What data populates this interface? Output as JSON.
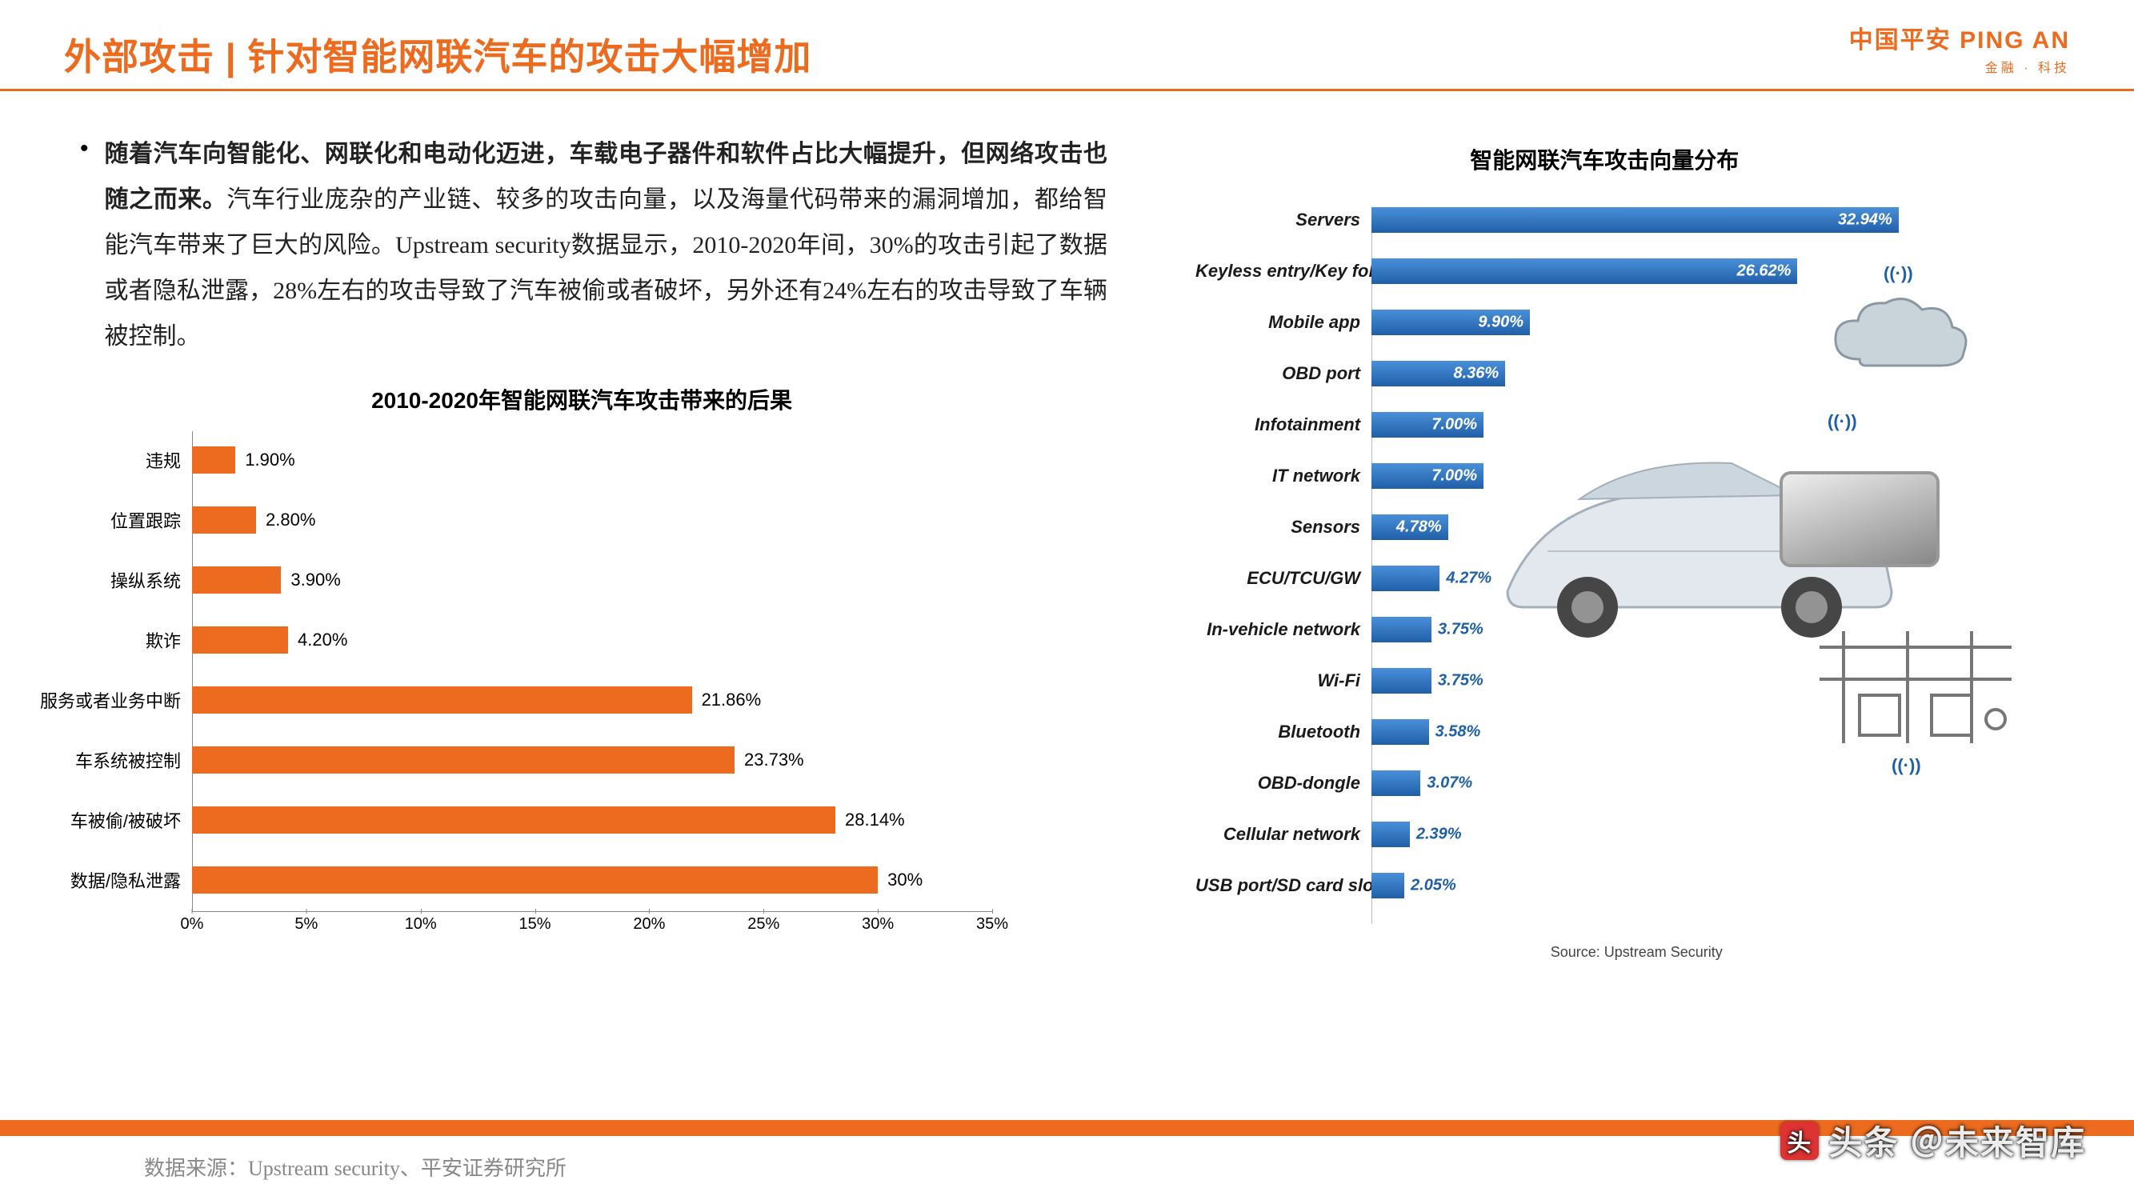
{
  "header": {
    "title": "外部攻击 | 针对智能网联汽车的攻击大幅增加",
    "logo_main": "中国平安 PING AN",
    "logo_sub": "金融 · 科技"
  },
  "paragraph": {
    "bold": "随着汽车向智能化、网联化和电动化迈进，车载电子器件和软件占比大幅提升，但网络攻击也随之而来。",
    "rest": "汽车行业庞杂的产业链、较多的攻击向量，以及海量代码带来的漏洞增加，都给智能汽车带来了巨大的风险。Upstream security数据显示，2010-2020年间，30%的攻击引起了数据或者隐私泄露，28%左右的攻击导致了汽车被偷或者破坏，另外还有24%左右的攻击导致了车辆被控制。"
  },
  "left_chart": {
    "type": "bar-horizontal",
    "title": "2010-2020年智能网联汽车攻击带来的后果",
    "bar_color": "#ec6b1f",
    "axis_color": "#888888",
    "axis_fontsize": 20,
    "label_fontsize": 22,
    "value_fontsize": 22,
    "xmax": 35,
    "xticks": [
      "0%",
      "5%",
      "10%",
      "15%",
      "20%",
      "25%",
      "30%",
      "35%"
    ],
    "rows": [
      {
        "label": "违规",
        "value": 1.9,
        "display": "1.90%"
      },
      {
        "label": "位置跟踪",
        "value": 2.8,
        "display": "2.80%"
      },
      {
        "label": "操纵系统",
        "value": 3.9,
        "display": "3.90%"
      },
      {
        "label": "欺诈",
        "value": 4.2,
        "display": "4.20%"
      },
      {
        "label": "服务或者业务中断",
        "value": 21.86,
        "display": "21.86%"
      },
      {
        "label": "车系统被控制",
        "value": 23.73,
        "display": "23.73%"
      },
      {
        "label": "车被偷/被破坏",
        "value": 28.14,
        "display": "28.14%"
      },
      {
        "label": "数据/隐私泄露",
        "value": 30.0,
        "display": "30%"
      }
    ]
  },
  "right_chart": {
    "type": "bar-horizontal",
    "title": "智能网联汽车攻击向量分布",
    "bar_color_from": "#4a90d9",
    "bar_color_to": "#1f5fa8",
    "label_fontsize": 22,
    "value_fontsize": 20,
    "source": "Source: Upstream Security",
    "xmax": 35,
    "rows": [
      {
        "label": "Servers",
        "value": 32.94,
        "display": "32.94%"
      },
      {
        "label": "Keyless entry/Key fob",
        "value": 26.62,
        "display": "26.62%"
      },
      {
        "label": "Mobile app",
        "value": 9.9,
        "display": "9.90%"
      },
      {
        "label": "OBD port",
        "value": 8.36,
        "display": "8.36%"
      },
      {
        "label": "Infotainment",
        "value": 7.0,
        "display": "7.00%"
      },
      {
        "label": "IT network",
        "value": 7.0,
        "display": "7.00%"
      },
      {
        "label": "Sensors",
        "value": 4.78,
        "display": "4.78%"
      },
      {
        "label": "ECU/TCU/GW",
        "value": 4.27,
        "display": "4.27%"
      },
      {
        "label": "In-vehicle network",
        "value": 3.75,
        "display": "3.75%"
      },
      {
        "label": "Wi-Fi",
        "value": 3.75,
        "display": "3.75%"
      },
      {
        "label": "Bluetooth",
        "value": 3.58,
        "display": "3.58%"
      },
      {
        "label": "OBD-dongle",
        "value": 3.07,
        "display": "3.07%"
      },
      {
        "label": "Cellular network",
        "value": 2.39,
        "display": "2.39%"
      },
      {
        "label": "USB port/SD card slot",
        "value": 2.05,
        "display": "2.05%"
      }
    ]
  },
  "footer": {
    "source": "数据来源：Upstream security、平安证券研究所",
    "watermark": "头条 ＠未来智库"
  },
  "colors": {
    "accent": "#ec6b1f",
    "blue": "#1f5fa8",
    "background": "#ffffff"
  }
}
